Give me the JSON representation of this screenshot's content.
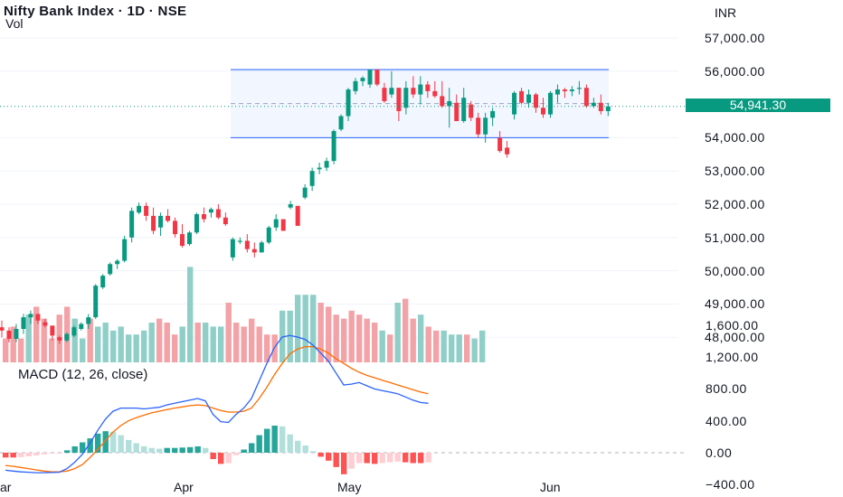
{
  "header": {
    "title": "Nifty Bank Index · 1D · NSE",
    "vol_label": "Vol",
    "currency": "INR",
    "macd_label": "MACD (12, 26, close)",
    "last_price": "54,941.30"
  },
  "colors": {
    "up": "#089981",
    "down": "#f23645",
    "vol_up": "#8fcfc8",
    "vol_down": "#f3a3a7",
    "macd_line": "#2962ff",
    "signal_line": "#ff6d00",
    "range_box": "#2962ff"
  },
  "chart_data": {
    "type": "candlestick",
    "price_axis": {
      "ticks": [
        "57,000.00",
        "56,000.00",
        "54,000.00",
        "53,000.00",
        "52,000.00",
        "51,000.00",
        "50,000.00",
        "49,000.00",
        "48,000.00"
      ],
      "ylim": [
        47650,
        57500
      ]
    },
    "macd_axis": {
      "ticks": [
        "1,600.00",
        "1,200.00",
        "800.00",
        "400.00",
        "0.00",
        "−400.00"
      ],
      "ylim": [
        -500,
        1650
      ]
    },
    "x_axis": {
      "labels": [
        "ar",
        "Apr",
        "May",
        "Jun"
      ]
    },
    "range_box": {
      "top": 56050,
      "bottom": 54000
    },
    "last_price": 54941.3,
    "candles": [
      [
        48300,
        48500,
        48000,
        48200
      ],
      [
        48200,
        48300,
        47850,
        47950
      ],
      [
        47950,
        48400,
        47850,
        48250
      ],
      [
        48250,
        48700,
        48100,
        48600
      ],
      [
        48600,
        48800,
        48400,
        48700
      ],
      [
        48700,
        48700,
        48400,
        48500
      ],
      [
        48450,
        48550,
        48300,
        48350
      ],
      [
        48350,
        48350,
        47900,
        48050
      ],
      [
        48000,
        48050,
        47800,
        47900
      ],
      [
        47900,
        48150,
        47850,
        48100
      ],
      [
        48050,
        48350,
        48000,
        48300
      ],
      [
        48250,
        48450,
        48200,
        48400
      ],
      [
        48400,
        48700,
        48250,
        48600
      ],
      [
        48600,
        49600,
        48550,
        49550
      ],
      [
        49500,
        49900,
        49450,
        49850
      ],
      [
        49900,
        50250,
        49850,
        50200
      ],
      [
        50200,
        50350,
        50050,
        50300
      ],
      [
        50300,
        51050,
        50250,
        50950
      ],
      [
        51000,
        51900,
        50850,
        51800
      ],
      [
        51750,
        52050,
        51700,
        51950
      ],
      [
        51950,
        52050,
        51500,
        51650
      ],
      [
        51650,
        51900,
        51100,
        51200
      ],
      [
        51300,
        51750,
        51050,
        51650
      ],
      [
        51650,
        51850,
        51450,
        51500
      ],
      [
        51500,
        51600,
        51000,
        51100
      ],
      [
        51100,
        51400,
        50700,
        50750
      ],
      [
        50800,
        51200,
        50750,
        51150
      ],
      [
        51150,
        51750,
        51100,
        51700
      ],
      [
        51700,
        51900,
        51450,
        51550
      ],
      [
        51750,
        51900,
        51600,
        51850
      ],
      [
        51850,
        52000,
        51550,
        51600
      ],
      [
        51600,
        51750,
        51350,
        51400
      ],
      [
        50400,
        51000,
        50300,
        50950
      ],
      [
        50900,
        51000,
        50800,
        50900
      ],
      [
        50900,
        51100,
        50550,
        50650
      ],
      [
        50650,
        50850,
        50400,
        50550
      ],
      [
        50550,
        50900,
        50550,
        50850
      ],
      [
        50850,
        51350,
        50800,
        51300
      ],
      [
        51300,
        51700,
        51200,
        51550
      ],
      [
        51550,
        51550,
        51200,
        51200
      ],
      [
        51900,
        52100,
        51850,
        52000
      ],
      [
        51950,
        51900,
        51350,
        51350
      ],
      [
        52200,
        52600,
        52150,
        52500
      ],
      [
        52550,
        53100,
        52400,
        53000
      ],
      [
        53050,
        53250,
        52900,
        53100
      ],
      [
        53100,
        53400,
        53000,
        53300
      ],
      [
        53300,
        54250,
        53200,
        54200
      ],
      [
        54250,
        54700,
        54200,
        54650
      ],
      [
        54650,
        55500,
        54500,
        55450
      ],
      [
        55400,
        55800,
        55300,
        55700
      ],
      [
        55700,
        55850,
        55550,
        55800
      ],
      [
        55600,
        56050,
        55500,
        56050
      ],
      [
        56050,
        56050,
        55550,
        55600
      ],
      [
        55500,
        55650,
        55050,
        55100
      ],
      [
        55300,
        56000,
        55200,
        55500
      ],
      [
        55500,
        55500,
        54500,
        54800
      ],
      [
        54900,
        55700,
        54700,
        55500
      ],
      [
        55500,
        55850,
        55200,
        55300
      ],
      [
        55300,
        55850,
        55000,
        55600
      ],
      [
        55600,
        55700,
        55200,
        55400
      ],
      [
        55400,
        55700,
        55200,
        55250
      ],
      [
        55250,
        55700,
        54900,
        54950
      ],
      [
        54950,
        55500,
        54300,
        55100
      ],
      [
        55050,
        55300,
        54500,
        54500
      ],
      [
        54500,
        55500,
        54450,
        55200
      ],
      [
        55000,
        55100,
        54500,
        54600
      ],
      [
        54600,
        54750,
        54000,
        54100
      ],
      [
        54100,
        54750,
        53850,
        54600
      ],
      [
        54600,
        54900,
        54350,
        54800
      ],
      [
        54000,
        54200,
        53550,
        53600
      ],
      [
        53700,
        53900,
        53400,
        53500
      ],
      [
        54700,
        55400,
        54550,
        55350
      ],
      [
        55400,
        55500,
        55000,
        55050
      ],
      [
        55050,
        55450,
        54900,
        55300
      ],
      [
        55300,
        55350,
        54750,
        54900
      ],
      [
        54900,
        55200,
        54600,
        54700
      ],
      [
        54700,
        55400,
        54600,
        55350
      ],
      [
        55300,
        55600,
        55050,
        55450
      ],
      [
        55450,
        55500,
        55200,
        55400
      ],
      [
        55400,
        55550,
        55250,
        55450
      ],
      [
        55500,
        55700,
        55300,
        55500
      ],
      [
        55500,
        55600,
        54900,
        54950
      ],
      [
        54950,
        55200,
        54900,
        55050
      ],
      [
        55050,
        55300,
        54700,
        54800
      ],
      [
        54800,
        55050,
        54650,
        54941.3
      ]
    ],
    "volume": [
      [
        0.3,
        "down"
      ],
      [
        0.45,
        "down"
      ],
      [
        0.3,
        "down"
      ],
      [
        0.6,
        "up"
      ],
      [
        0.7,
        "down"
      ],
      [
        0.55,
        "down"
      ],
      [
        0.3,
        "down"
      ],
      [
        0.6,
        "down"
      ],
      [
        0.7,
        "down"
      ],
      [
        0.55,
        "up"
      ],
      [
        0.3,
        "up"
      ],
      [
        0.55,
        "down"
      ],
      [
        0.45,
        "up"
      ],
      [
        0.5,
        "up"
      ],
      [
        0.4,
        "up"
      ],
      [
        0.45,
        "up"
      ],
      [
        0.35,
        "up"
      ],
      [
        0.35,
        "up"
      ],
      [
        0.4,
        "up"
      ],
      [
        0.5,
        "up"
      ],
      [
        0.55,
        "down"
      ],
      [
        0.5,
        "down"
      ],
      [
        0.35,
        "down"
      ],
      [
        0.45,
        "up"
      ],
      [
        1.2,
        "up"
      ],
      [
        0.5,
        "down"
      ],
      [
        0.5,
        "up"
      ],
      [
        0.45,
        "up"
      ],
      [
        0.45,
        "up"
      ],
      [
        0.75,
        "down"
      ],
      [
        0.5,
        "down"
      ],
      [
        0.45,
        "down"
      ],
      [
        0.55,
        "down"
      ],
      [
        0.45,
        "down"
      ],
      [
        0.35,
        "down"
      ],
      [
        0.35,
        "down"
      ],
      [
        0.65,
        "up"
      ],
      [
        0.65,
        "up"
      ],
      [
        0.85,
        "up"
      ],
      [
        0.85,
        "up"
      ],
      [
        0.85,
        "up"
      ],
      [
        0.75,
        "down"
      ],
      [
        0.7,
        "down"
      ],
      [
        0.6,
        "down"
      ],
      [
        0.55,
        "down"
      ],
      [
        0.65,
        "down"
      ],
      [
        0.6,
        "down"
      ],
      [
        0.55,
        "down"
      ],
      [
        0.5,
        "down"
      ],
      [
        0.4,
        "up"
      ],
      [
        0.35,
        "down"
      ],
      [
        0.75,
        "up"
      ],
      [
        0.8,
        "down"
      ],
      [
        0.55,
        "down"
      ],
      [
        0.6,
        "up"
      ],
      [
        0.45,
        "down"
      ],
      [
        0.4,
        "down"
      ],
      [
        0.4,
        "up"
      ],
      [
        0.35,
        "up"
      ],
      [
        0.35,
        "up"
      ],
      [
        0.35,
        "down"
      ],
      [
        0.3,
        "up"
      ],
      [
        0.4,
        "up"
      ]
    ],
    "macd_line": [
      -220,
      -230,
      -240,
      -245,
      -250,
      -250,
      -248,
      -245,
      -200,
      -120,
      -20,
      120,
      280,
      420,
      520,
      560,
      560,
      560,
      550,
      560,
      570,
      600,
      620,
      640,
      660,
      680,
      650,
      480,
      390,
      380,
      480,
      560,
      680,
      900,
      1120,
      1320,
      1450,
      1470,
      1450,
      1420,
      1350,
      1250,
      1150,
      1000,
      850,
      860,
      880,
      840,
      800,
      780,
      760,
      740,
      700,
      660,
      630,
      620
    ],
    "signal_line": [
      -160,
      -170,
      -185,
      -200,
      -215,
      -230,
      -240,
      -240,
      -230,
      -200,
      -150,
      -60,
      40,
      150,
      260,
      340,
      400,
      440,
      470,
      500,
      520,
      540,
      560,
      575,
      590,
      600,
      590,
      560,
      530,
      510,
      510,
      520,
      560,
      680,
      820,
      980,
      1120,
      1240,
      1300,
      1330,
      1330,
      1300,
      1250,
      1180,
      1120,
      1060,
      1010,
      970,
      940,
      910,
      880,
      850,
      820,
      790,
      760,
      740
    ],
    "histogram": [
      -60,
      -60,
      -55,
      -45,
      -35,
      -20,
      -8,
      -5,
      30,
      80,
      130,
      180,
      240,
      270,
      260,
      220,
      160,
      120,
      80,
      60,
      50,
      60,
      60,
      65,
      70,
      80,
      60,
      -80,
      -140,
      -130,
      -30,
      40,
      120,
      220,
      300,
      340,
      330,
      230,
      150,
      90,
      20,
      -50,
      -100,
      -180,
      -270,
      -200,
      -130,
      -130,
      -140,
      -130,
      -120,
      -110,
      -120,
      -130,
      -130,
      -120
    ]
  }
}
